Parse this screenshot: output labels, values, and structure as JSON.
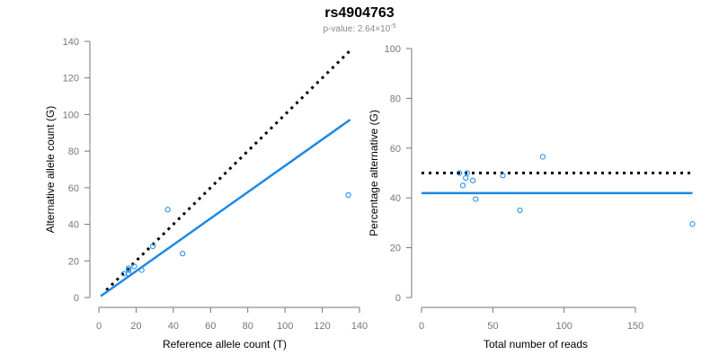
{
  "title": "rs4904763",
  "subtitle": "p-value: 2.64×10",
  "subtitle_exp": "-5",
  "colors": {
    "points": "#1e88e5",
    "fit_line": "#1e88e5",
    "expected_line": "#000000",
    "axis": "#777777"
  },
  "chart_data": [
    {
      "type": "scatter",
      "xlabel": "Reference allele count (T)",
      "ylabel": "Alternative allele count (G)",
      "xlim": [
        0,
        140
      ],
      "ylim": [
        0,
        140
      ],
      "xticks": [
        0,
        20,
        40,
        60,
        80,
        100,
        120,
        140
      ],
      "yticks": [
        0,
        20,
        40,
        60,
        80,
        100,
        120,
        140
      ],
      "grid": false,
      "points": [
        [
          37,
          48
        ],
        [
          29,
          28
        ],
        [
          45,
          24
        ],
        [
          134,
          56
        ],
        [
          16,
          16
        ],
        [
          16,
          15
        ],
        [
          13.5,
          13
        ],
        [
          16,
          13
        ],
        [
          19,
          17
        ],
        [
          23,
          15
        ]
      ],
      "lines": [
        {
          "style": "dotted",
          "color": "#000000",
          "x": [
            4,
            135
          ],
          "y": [
            4,
            135
          ]
        },
        {
          "style": "solid",
          "color": "#1e88e5",
          "x": [
            1,
            135
          ],
          "y": [
            0.72,
            97.2
          ]
        }
      ]
    },
    {
      "type": "scatter",
      "xlabel": "Total number of reads",
      "ylabel": "Percentage alternative (G)",
      "xlim": [
        0,
        190
      ],
      "ylim": [
        0,
        100
      ],
      "xticks": [
        0,
        50,
        100,
        150
      ],
      "yticks": [
        0,
        20,
        40,
        60,
        80,
        100
      ],
      "grid": false,
      "points": [
        [
          85,
          56.5
        ],
        [
          57,
          49
        ],
        [
          69,
          35
        ],
        [
          190,
          29.5
        ],
        [
          32,
          50
        ],
        [
          31,
          48
        ],
        [
          26.5,
          50
        ],
        [
          29,
          45
        ],
        [
          36,
          47
        ],
        [
          38,
          39.5
        ]
      ],
      "lines": [
        {
          "style": "dotted",
          "color": "#000000",
          "x": [
            0,
            190
          ],
          "y": [
            50,
            50
          ]
        },
        {
          "style": "solid",
          "color": "#1e88e5",
          "x": [
            0,
            190
          ],
          "y": [
            41.9,
            41.9
          ]
        }
      ]
    }
  ]
}
